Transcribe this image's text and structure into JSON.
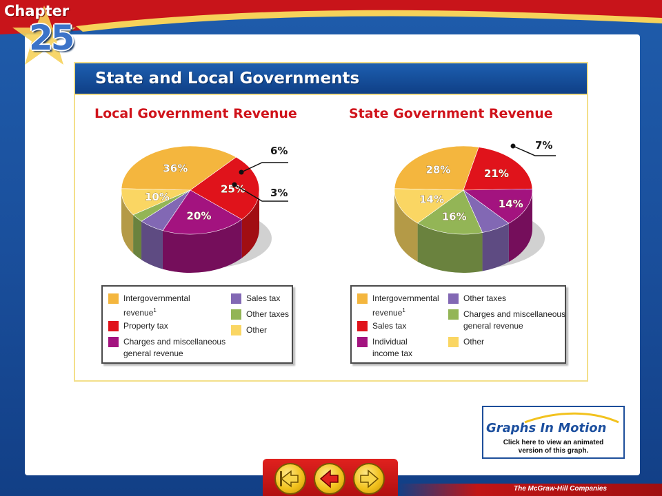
{
  "chapter": {
    "word": "Chapter",
    "number": "25"
  },
  "slide_title": "State and Local Governments",
  "chart_data": [
    {
      "type": "pie",
      "title": "Local Government Revenue",
      "slices": [
        {
          "label": "Intergovernmental revenue",
          "value": 36,
          "pct": "36%",
          "color": "#f4b63e"
        },
        {
          "label": "Property tax",
          "value": 25,
          "pct": "25%",
          "color": "#e0131b"
        },
        {
          "label": "Charges and miscellaneous general revenue",
          "value": 20,
          "pct": "20%",
          "color": "#a3137f"
        },
        {
          "label": "Sales tax",
          "value": 6,
          "pct": "6%",
          "color": "#8268b4"
        },
        {
          "label": "Other taxes",
          "value": 3,
          "pct": "3%",
          "color": "#93b556"
        },
        {
          "label": "Other",
          "value": 10,
          "pct": "10%",
          "color": "#fad663"
        }
      ],
      "legend": [
        {
          "label": "Intergovernmental",
          "label2": "revenue",
          "sup": "1",
          "color": "#f4b63e"
        },
        {
          "label": "Property tax",
          "color": "#e0131b"
        },
        {
          "label": "Charges and miscellaneous",
          "label2": "general revenue",
          "color": "#a3137f"
        },
        {
          "label": "Sales tax",
          "color": "#8268b4"
        },
        {
          "label": "Other taxes",
          "color": "#93b556"
        },
        {
          "label": "Other",
          "color": "#fad663"
        }
      ]
    },
    {
      "type": "pie",
      "title": "State Government Revenue",
      "slices": [
        {
          "label": "Intergovernmental revenue",
          "value": 28,
          "pct": "28%",
          "color": "#f4b63e"
        },
        {
          "label": "Sales tax",
          "value": 21,
          "pct": "21%",
          "color": "#e0131b"
        },
        {
          "label": "Individual income tax",
          "value": 14,
          "pct": "14%",
          "color": "#a3137f"
        },
        {
          "label": "Other taxes",
          "value": 7,
          "pct": "7%",
          "color": "#8268b4"
        },
        {
          "label": "Charges and miscellaneous general revenue",
          "value": 16,
          "pct": "16%",
          "color": "#93b556"
        },
        {
          "label": "Other",
          "value": 14,
          "pct": "14%",
          "color": "#fad663"
        }
      ],
      "legend": [
        {
          "label": "Intergovernmental",
          "label2": "revenue",
          "sup": "1",
          "color": "#f4b63e"
        },
        {
          "label": "Sales tax",
          "color": "#e0131b"
        },
        {
          "label": "Individual",
          "label2": "income tax",
          "color": "#a3137f"
        },
        {
          "label": "Other taxes",
          "color": "#8268b4"
        },
        {
          "label": "Charges and miscellaneous",
          "label2": "general revenue",
          "color": "#93b556"
        },
        {
          "label": "Other",
          "color": "#fad663"
        }
      ]
    }
  ],
  "graphs_in_motion": {
    "title": "Graphs In Motion",
    "line1": "Click here to view an animated",
    "line2": "version of this graph."
  },
  "nav": {
    "back_icon": "return-arrow-icon",
    "prev_icon": "left-arrow-icon",
    "next_icon": "right-arrow-icon"
  },
  "footer": "The McGraw-Hill Companies"
}
